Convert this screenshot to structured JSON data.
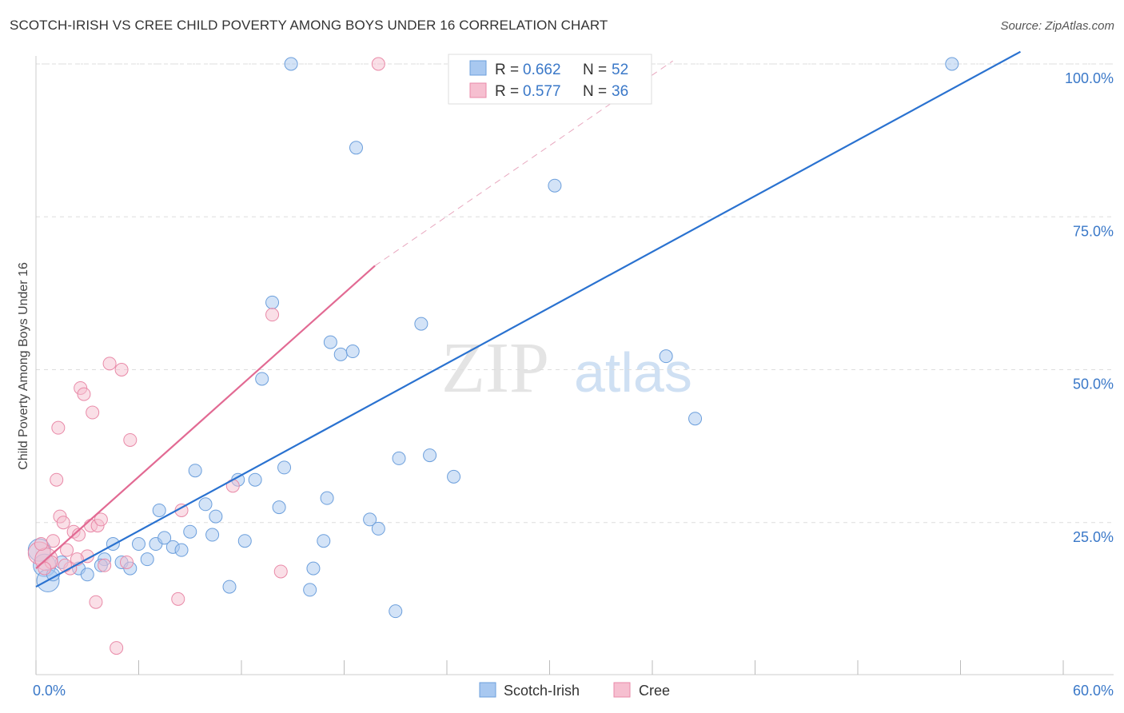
{
  "title": "SCOTCH-IRISH VS CREE CHILD POVERTY AMONG BOYS UNDER 16 CORRELATION CHART",
  "source": "Source: ZipAtlas.com",
  "watermark": {
    "zip": "ZIP",
    "atlas": "atlas"
  },
  "colors": {
    "blue_fill": "#a8c8f0",
    "blue_stroke": "#6c9fdc",
    "blue_line": "#2a72d0",
    "pink_fill": "#f6bfd0",
    "pink_stroke": "#e98aa8",
    "pink_line": "#e26a93",
    "axis_label": "#3a78c8",
    "grid": "#dddddd"
  },
  "legend_top": {
    "series": [
      {
        "r_label": "R = ",
        "r_value": "0.662",
        "n_label": "N = ",
        "n_value": "52"
      },
      {
        "r_label": "R = ",
        "r_value": "0.577",
        "n_label": "N = ",
        "n_value": "36"
      }
    ]
  },
  "legend_bottom": [
    "Scotch-Irish",
    "Cree"
  ],
  "chart_data": {
    "type": "scatter",
    "ylabel": "Child Poverty Among Boys Under 16",
    "xlim": [
      0,
      60
    ],
    "ylim": [
      0,
      104
    ],
    "x_tick_labels": [
      {
        "value": 0,
        "label": "0.0%"
      },
      {
        "value": 60,
        "label": "60.0%"
      }
    ],
    "y_tick_labels": [
      {
        "value": 25,
        "label": "25.0%"
      },
      {
        "value": 50,
        "label": "50.0%"
      },
      {
        "value": 75,
        "label": "75.0%"
      },
      {
        "value": 100,
        "label": "100.0%"
      }
    ],
    "grid": true,
    "series": [
      {
        "name": "Scotch-Irish",
        "color": "blue",
        "trend": {
          "x": [
            0,
            57.5
          ],
          "y": [
            14.5,
            102
          ]
        },
        "points": [
          {
            "x": 0.2,
            "y": 20.5,
            "big": true
          },
          {
            "x": 0.5,
            "y": 18.0,
            "big": true
          },
          {
            "x": 0.7,
            "y": 15.5,
            "big": true
          },
          {
            "x": 1.0,
            "y": 16.5
          },
          {
            "x": 1.5,
            "y": 18.5
          },
          {
            "x": 2.5,
            "y": 17.5
          },
          {
            "x": 3.0,
            "y": 16.5
          },
          {
            "x": 4.0,
            "y": 19.0
          },
          {
            "x": 4.5,
            "y": 21.5
          },
          {
            "x": 5.0,
            "y": 18.5
          },
          {
            "x": 5.5,
            "y": 17.5
          },
          {
            "x": 6.0,
            "y": 21.5
          },
          {
            "x": 6.5,
            "y": 19.0
          },
          {
            "x": 7.2,
            "y": 27.0
          },
          {
            "x": 7.0,
            "y": 21.5
          },
          {
            "x": 8.0,
            "y": 21.0
          },
          {
            "x": 8.5,
            "y": 20.5
          },
          {
            "x": 9.0,
            "y": 23.5
          },
          {
            "x": 9.3,
            "y": 33.5
          },
          {
            "x": 9.9,
            "y": 28.0
          },
          {
            "x": 10.3,
            "y": 23.0
          },
          {
            "x": 10.5,
            "y": 26.0
          },
          {
            "x": 11.3,
            "y": 14.5
          },
          {
            "x": 11.8,
            "y": 32.0
          },
          {
            "x": 12.2,
            "y": 22.0
          },
          {
            "x": 12.8,
            "y": 32.0
          },
          {
            "x": 13.2,
            "y": 48.5
          },
          {
            "x": 13.8,
            "y": 61.0
          },
          {
            "x": 14.2,
            "y": 27.5
          },
          {
            "x": 14.5,
            "y": 34.0
          },
          {
            "x": 16.0,
            "y": 14.0
          },
          {
            "x": 16.2,
            "y": 17.5
          },
          {
            "x": 16.8,
            "y": 22.0
          },
          {
            "x": 17.0,
            "y": 29.0
          },
          {
            "x": 17.2,
            "y": 54.5
          },
          {
            "x": 17.8,
            "y": 52.5
          },
          {
            "x": 18.5,
            "y": 53.0
          },
          {
            "x": 19.5,
            "y": 25.5
          },
          {
            "x": 20.0,
            "y": 24.0
          },
          {
            "x": 21.0,
            "y": 10.5
          },
          {
            "x": 21.2,
            "y": 35.5
          },
          {
            "x": 22.5,
            "y": 57.5
          },
          {
            "x": 23.0,
            "y": 36.0
          },
          {
            "x": 24.4,
            "y": 32.5
          },
          {
            "x": 14.9,
            "y": 100.0
          },
          {
            "x": 18.7,
            "y": 86.3
          },
          {
            "x": 30.3,
            "y": 80.1
          },
          {
            "x": 36.8,
            "y": 52.2
          },
          {
            "x": 38.5,
            "y": 42.0
          },
          {
            "x": 53.5,
            "y": 100.0
          },
          {
            "x": 7.5,
            "y": 22.5
          },
          {
            "x": 3.8,
            "y": 18.0
          }
        ]
      },
      {
        "name": "Cree",
        "color": "pink",
        "trend": {
          "x": [
            0,
            19.8
          ],
          "y": [
            17.5,
            67
          ]
        },
        "trend_ext": {
          "x": [
            19.8,
            37.2
          ],
          "y": [
            67,
            100.5
          ]
        },
        "points": [
          {
            "x": 0.2,
            "y": 20.0,
            "big": true
          },
          {
            "x": 0.6,
            "y": 19.0,
            "big": true
          },
          {
            "x": 0.9,
            "y": 18.5
          },
          {
            "x": 1.0,
            "y": 22.0
          },
          {
            "x": 1.2,
            "y": 32.0
          },
          {
            "x": 1.3,
            "y": 40.5
          },
          {
            "x": 1.4,
            "y": 26.0
          },
          {
            "x": 1.6,
            "y": 25.0
          },
          {
            "x": 1.8,
            "y": 20.5
          },
          {
            "x": 2.0,
            "y": 17.5
          },
          {
            "x": 2.2,
            "y": 23.5
          },
          {
            "x": 2.5,
            "y": 23.0
          },
          {
            "x": 2.6,
            "y": 47.0
          },
          {
            "x": 2.8,
            "y": 46.0
          },
          {
            "x": 3.0,
            "y": 19.5
          },
          {
            "x": 3.2,
            "y": 24.5
          },
          {
            "x": 3.3,
            "y": 43.0
          },
          {
            "x": 3.5,
            "y": 12.0
          },
          {
            "x": 3.6,
            "y": 24.5
          },
          {
            "x": 4.0,
            "y": 18.0
          },
          {
            "x": 4.3,
            "y": 51.0
          },
          {
            "x": 4.7,
            "y": 4.5
          },
          {
            "x": 5.0,
            "y": 50.0
          },
          {
            "x": 5.3,
            "y": 18.5
          },
          {
            "x": 5.5,
            "y": 38.5
          },
          {
            "x": 8.3,
            "y": 12.5
          },
          {
            "x": 8.5,
            "y": 27.0
          },
          {
            "x": 11.5,
            "y": 31.0
          },
          {
            "x": 13.8,
            "y": 59.0
          },
          {
            "x": 14.3,
            "y": 17.0
          },
          {
            "x": 20.0,
            "y": 100.0
          },
          {
            "x": 0.5,
            "y": 17.5
          },
          {
            "x": 1.7,
            "y": 18.0
          },
          {
            "x": 2.4,
            "y": 19.0
          },
          {
            "x": 3.8,
            "y": 25.5
          },
          {
            "x": 0.3,
            "y": 21.5
          }
        ]
      }
    ]
  }
}
